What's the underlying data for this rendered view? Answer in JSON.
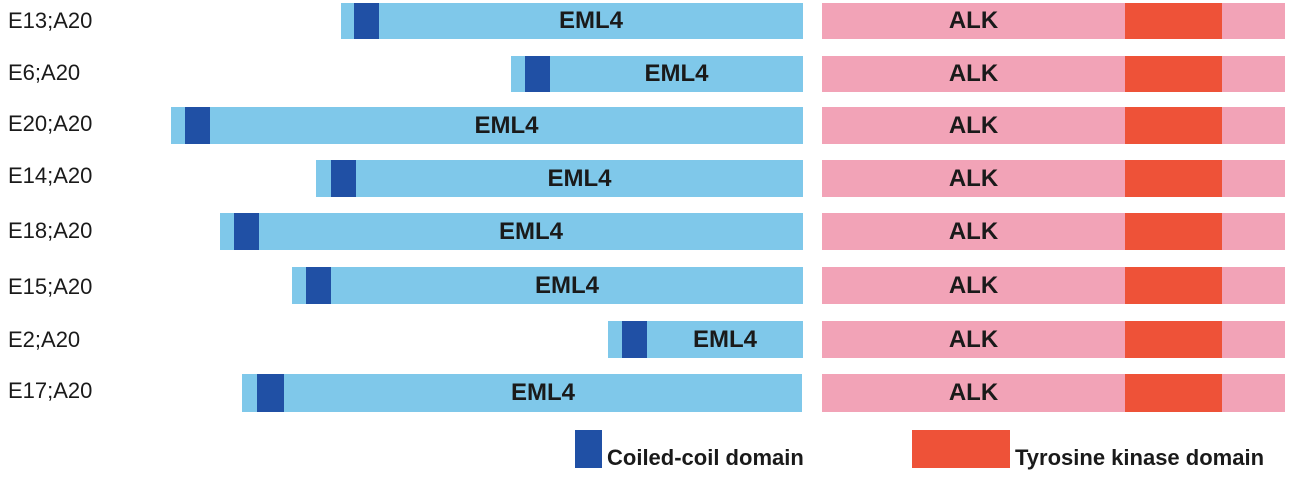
{
  "rows": [
    {
      "label": "E13;A20",
      "eml_label": "EML4",
      "alk_label": "ALK"
    },
    {
      "label": "E6;A20",
      "eml_label": "EML4",
      "alk_label": "ALK"
    },
    {
      "label": "E20;A20",
      "eml_label": "EML4",
      "alk_label": "ALK"
    },
    {
      "label": "E14;A20",
      "eml_label": "EML4",
      "alk_label": "ALK"
    },
    {
      "label": "E18;A20",
      "eml_label": "EML4",
      "alk_label": "ALK"
    },
    {
      "label": "E15;A20",
      "eml_label": "EML4",
      "alk_label": "ALK"
    },
    {
      "label": "E2;A20",
      "eml_label": "EML4",
      "alk_label": "ALK"
    },
    {
      "label": "E17;A20",
      "eml_label": "EML4",
      "alk_label": "ALK"
    }
  ],
  "legend": {
    "coiled_coil": "Coiled-coil domain",
    "tyrosine_kinase": "Tyrosine kinase domain"
  },
  "colors": {
    "eml4": "#7fc8ea",
    "coiled_coil": "#2050a5",
    "alk": "#f2a3b7",
    "tyrosine_kinase": "#ee5238"
  }
}
